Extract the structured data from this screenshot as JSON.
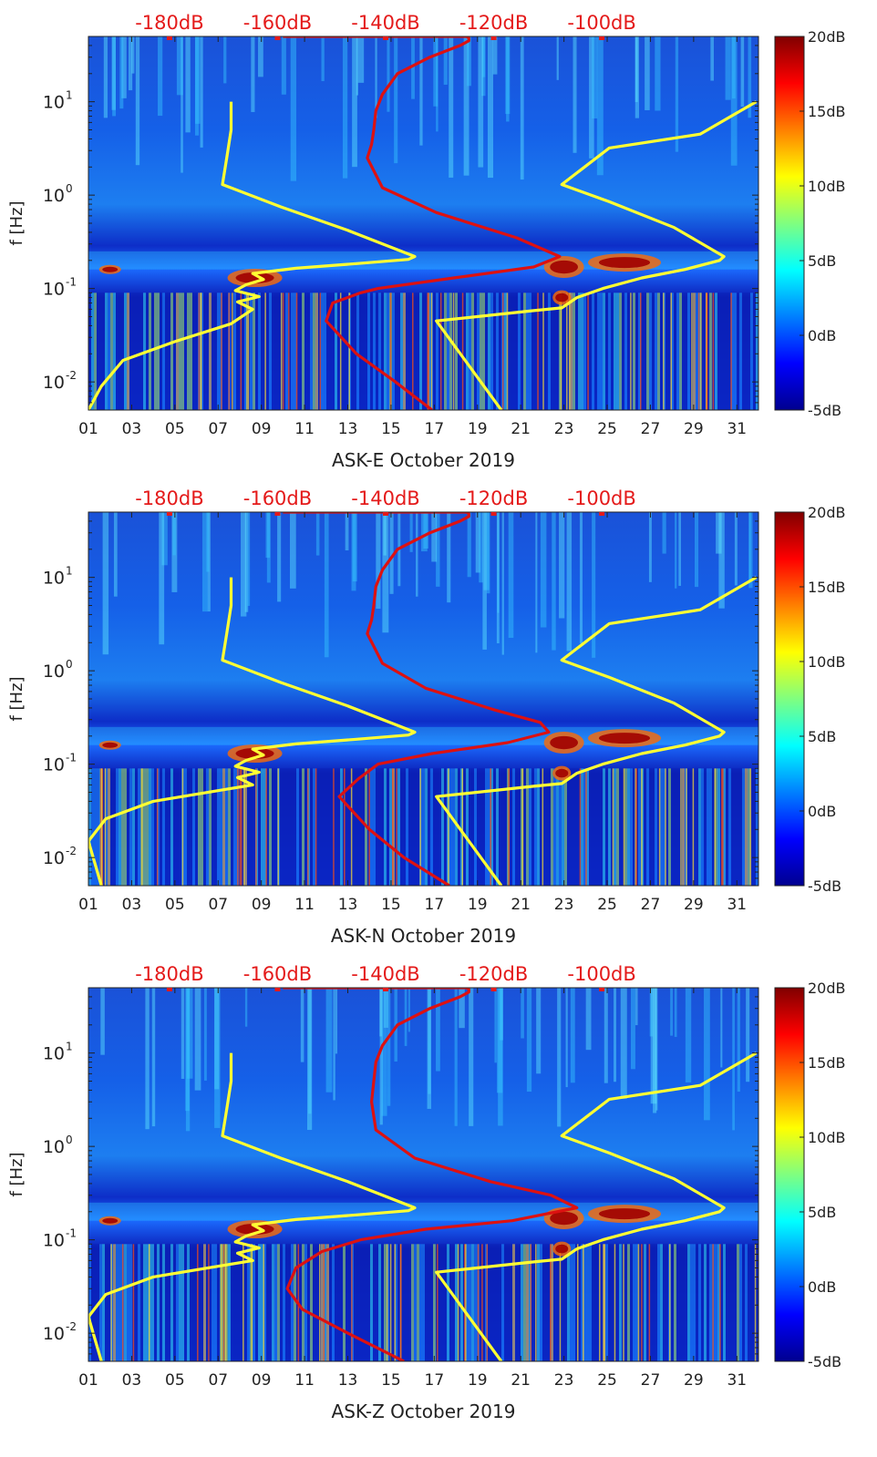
{
  "chart_data": [
    {
      "type": "heatmap",
      "title": "ASK-E October 2019",
      "xlabel": "ASK-E October 2019",
      "ylabel": "f [Hz]",
      "x_ticks": [
        "01",
        "03",
        "05",
        "07",
        "09",
        "11",
        "13",
        "15",
        "17",
        "19",
        "21",
        "23",
        "25",
        "27",
        "29",
        "31"
      ],
      "y_ticks": [
        {
          "label": "10",
          "exp": "-2",
          "value": 0.01
        },
        {
          "label": "10",
          "exp": "-1",
          "value": 0.1
        },
        {
          "label": "10",
          "exp": "0",
          "value": 1
        },
        {
          "label": "10",
          "exp": "1",
          "value": 10
        }
      ],
      "top_ticks": [
        "-180dB",
        "-160dB",
        "-140dB",
        "-120dB",
        "-100dB"
      ],
      "colorbar_ticks": [
        "20dB",
        "15dB",
        "10dB",
        "5dB",
        "0dB",
        "-5dB"
      ],
      "colorbar_range": [
        -5,
        20
      ],
      "xlim": [
        1,
        32
      ],
      "ylim": [
        0.005,
        50
      ],
      "series": [
        {
          "name": "yellow-curve-left",
          "color": "#ffff33",
          "x": [
            1.0,
            1.6,
            2.6,
            5.0,
            7.6,
            8.6,
            7.9,
            8.9,
            7.8,
            8.3,
            9.1,
            8.6,
            10.6,
            13.4,
            15.8,
            16.1,
            13.0,
            9.9,
            7.2,
            7.4,
            7.6,
            7.6
          ],
          "y": [
            0.005,
            0.009,
            0.017,
            0.027,
            0.042,
            0.06,
            0.072,
            0.082,
            0.095,
            0.11,
            0.125,
            0.145,
            0.165,
            0.185,
            0.205,
            0.22,
            0.42,
            0.75,
            1.3,
            2.5,
            5,
            10
          ]
        },
        {
          "name": "yellow-curve-right",
          "color": "#ffff33",
          "x": [
            20.1,
            17.1,
            21.6,
            22.9,
            23.6,
            24.8,
            26.6,
            28.6,
            30.2,
            30.4,
            28.1,
            25.1,
            22.9,
            25.1,
            29.3,
            31.9
          ],
          "y": [
            0.005,
            0.045,
            0.058,
            0.062,
            0.08,
            0.1,
            0.13,
            0.16,
            0.2,
            0.22,
            0.45,
            0.85,
            1.3,
            3.2,
            4.5,
            10
          ]
        },
        {
          "name": "red-curve",
          "color": "#dd1111",
          "x": [
            16.9,
            15.2,
            13.4,
            12.0,
            12.3,
            13.6,
            14.4,
            17.9,
            21.6,
            22.8,
            20.8,
            17.1,
            14.6,
            13.9,
            14.1,
            14.2,
            14.3,
            14.6,
            15.3,
            16.8,
            18.2,
            18.6,
            18.6,
            18.5,
            15.0,
            10.0
          ],
          "y": [
            0.005,
            0.01,
            0.02,
            0.045,
            0.07,
            0.09,
            0.1,
            0.13,
            0.17,
            0.22,
            0.35,
            0.65,
            1.2,
            2.5,
            3.5,
            5,
            8,
            12,
            20,
            30,
            40,
            45,
            48,
            50,
            50,
            50
          ]
        }
      ]
    },
    {
      "type": "heatmap",
      "title": "ASK-N October 2019",
      "xlabel": "ASK-N October 2019",
      "ylabel": "f [Hz]",
      "x_ticks": [
        "01",
        "03",
        "05",
        "07",
        "09",
        "11",
        "13",
        "15",
        "17",
        "19",
        "21",
        "23",
        "25",
        "27",
        "29",
        "31"
      ],
      "y_ticks": [
        {
          "label": "10",
          "exp": "-2",
          "value": 0.01
        },
        {
          "label": "10",
          "exp": "-1",
          "value": 0.1
        },
        {
          "label": "10",
          "exp": "0",
          "value": 1
        },
        {
          "label": "10",
          "exp": "1",
          "value": 10
        }
      ],
      "top_ticks": [
        "-180dB",
        "-160dB",
        "-140dB",
        "-120dB",
        "-100dB"
      ],
      "colorbar_ticks": [
        "20dB",
        "15dB",
        "10dB",
        "5dB",
        "0dB",
        "-5dB"
      ],
      "colorbar_range": [
        -5,
        20
      ],
      "xlim": [
        1,
        32
      ],
      "ylim": [
        0.005,
        50
      ],
      "series": [
        {
          "name": "yellow-curve-left",
          "color": "#ffff33",
          "x": [
            1.6,
            1.0,
            1.8,
            4.0,
            7.6,
            8.6,
            7.9,
            8.9,
            7.8,
            8.3,
            9.1,
            8.6,
            10.6,
            13.4,
            15.8,
            16.1,
            13.0,
            9.9,
            7.2,
            7.4,
            7.6,
            7.6
          ],
          "y": [
            0.005,
            0.015,
            0.026,
            0.04,
            0.055,
            0.06,
            0.072,
            0.082,
            0.095,
            0.11,
            0.125,
            0.145,
            0.165,
            0.185,
            0.205,
            0.22,
            0.42,
            0.75,
            1.3,
            2.5,
            5,
            10
          ]
        },
        {
          "name": "yellow-curve-right",
          "color": "#ffff33",
          "x": [
            20.1,
            17.1,
            21.6,
            22.9,
            23.6,
            24.8,
            26.6,
            28.6,
            30.2,
            30.4,
            28.1,
            25.1,
            22.9,
            25.1,
            29.3,
            31.9
          ],
          "y": [
            0.005,
            0.045,
            0.058,
            0.062,
            0.08,
            0.1,
            0.13,
            0.16,
            0.2,
            0.22,
            0.45,
            0.85,
            1.3,
            3.2,
            4.5,
            10
          ]
        },
        {
          "name": "red-curve",
          "color": "#dd1111",
          "x": [
            17.7,
            15.6,
            14.0,
            12.6,
            13.5,
            14.4,
            16.9,
            20.4,
            22.3,
            21.9,
            19.8,
            16.6,
            14.6,
            13.9,
            14.1,
            14.2,
            14.3,
            14.6,
            15.3,
            16.8,
            18.2,
            18.6,
            18.6,
            18.5,
            15.0,
            10.0
          ],
          "y": [
            0.005,
            0.01,
            0.02,
            0.045,
            0.07,
            0.1,
            0.13,
            0.17,
            0.22,
            0.28,
            0.38,
            0.65,
            1.2,
            2.5,
            3.5,
            5,
            8,
            12,
            20,
            30,
            40,
            45,
            48,
            50,
            50,
            50
          ]
        }
      ]
    },
    {
      "type": "heatmap",
      "title": "ASK-Z October 2019",
      "xlabel": "ASK-Z October 2019",
      "ylabel": "f [Hz]",
      "x_ticks": [
        "01",
        "03",
        "05",
        "07",
        "09",
        "11",
        "13",
        "15",
        "17",
        "19",
        "21",
        "23",
        "25",
        "27",
        "29",
        "31"
      ],
      "y_ticks": [
        {
          "label": "10",
          "exp": "-2",
          "value": 0.01
        },
        {
          "label": "10",
          "exp": "-1",
          "value": 0.1
        },
        {
          "label": "10",
          "exp": "0",
          "value": 1
        },
        {
          "label": "10",
          "exp": "1",
          "value": 10
        }
      ],
      "top_ticks": [
        "-180dB",
        "-160dB",
        "-140dB",
        "-120dB",
        "-100dB"
      ],
      "colorbar_ticks": [
        "20dB",
        "15dB",
        "10dB",
        "5dB",
        "0dB",
        "-5dB"
      ],
      "colorbar_range": [
        -5,
        20
      ],
      "xlim": [
        1,
        32
      ],
      "ylim": [
        0.005,
        50
      ],
      "series": [
        {
          "name": "yellow-curve-left",
          "color": "#ffff33",
          "x": [
            1.6,
            1.0,
            1.8,
            4.0,
            7.6,
            8.6,
            7.9,
            8.9,
            7.8,
            8.3,
            9.1,
            8.6,
            10.6,
            13.4,
            15.8,
            16.1,
            13.0,
            9.9,
            7.2,
            7.4,
            7.6,
            7.6
          ],
          "y": [
            0.005,
            0.015,
            0.026,
            0.04,
            0.055,
            0.06,
            0.072,
            0.082,
            0.095,
            0.11,
            0.125,
            0.145,
            0.165,
            0.185,
            0.205,
            0.22,
            0.42,
            0.75,
            1.3,
            2.5,
            5,
            10
          ]
        },
        {
          "name": "yellow-curve-right",
          "color": "#ffff33",
          "x": [
            20.1,
            17.1,
            21.6,
            22.9,
            23.6,
            24.8,
            26.6,
            28.6,
            30.2,
            30.4,
            28.1,
            25.1,
            22.9,
            25.1,
            29.3,
            31.9
          ],
          "y": [
            0.005,
            0.045,
            0.058,
            0.062,
            0.08,
            0.1,
            0.13,
            0.16,
            0.2,
            0.22,
            0.45,
            0.85,
            1.3,
            3.2,
            4.5,
            10
          ]
        },
        {
          "name": "red-curve",
          "color": "#dd1111",
          "x": [
            15.6,
            13.0,
            10.9,
            10.2,
            10.6,
            11.8,
            13.6,
            16.6,
            20.6,
            23.6,
            22.4,
            19.6,
            16.1,
            14.3,
            14.1,
            14.2,
            14.3,
            14.6,
            15.3,
            16.8,
            18.2,
            18.6,
            18.6,
            18.5,
            15.0,
            10.0
          ],
          "y": [
            0.005,
            0.01,
            0.018,
            0.03,
            0.05,
            0.075,
            0.1,
            0.13,
            0.16,
            0.22,
            0.3,
            0.42,
            0.75,
            1.5,
            3.0,
            5,
            8,
            12,
            20,
            30,
            40,
            45,
            48,
            50,
            50,
            50
          ]
        }
      ]
    }
  ]
}
